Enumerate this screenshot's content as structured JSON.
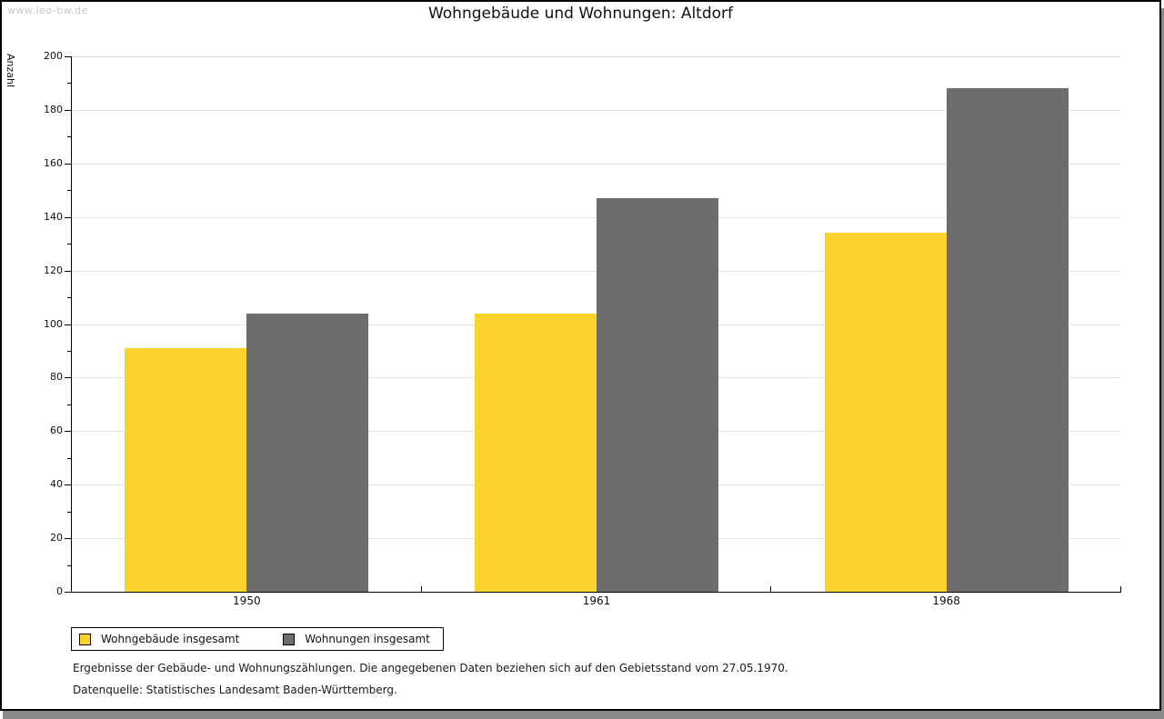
{
  "page": {
    "watermark": "www.leo-bw.de",
    "title": "Wohngebäude und Wohnungen: Altdorf"
  },
  "chart_data": {
    "type": "bar",
    "title": "Wohngebäude und Wohnungen: Altdorf",
    "xlabel": "",
    "ylabel": "Anzahl",
    "categories": [
      "1950",
      "1961",
      "1968"
    ],
    "series": [
      {
        "name": "Wohngebäude insgesamt",
        "color": "#FBD32C",
        "values": [
          91,
          104,
          134
        ]
      },
      {
        "name": "Wohnungen insgesamt",
        "color": "#6D6D6D",
        "values": [
          104,
          147,
          188
        ]
      }
    ],
    "ylim": [
      0,
      200
    ],
    "ytick_step": 20,
    "y_minor_step": 10,
    "grid": true,
    "legend_position": "bottom-left"
  },
  "legend": {
    "items": [
      {
        "label": "Wohngebäude insgesamt",
        "color": "#FBD32C"
      },
      {
        "label": "Wohnungen insgesamt",
        "color": "#6D6D6D"
      }
    ]
  },
  "footnotes": [
    "Ergebnisse der Gebäude- und Wohnungszählungen. Die angegebenen Daten beziehen sich auf den Gebietsstand vom 27.05.1970.",
    "Datenquelle: Statistisches Landesamt Baden-Württemberg."
  ],
  "colors": {
    "grid": "#E3E3E3",
    "axis": "#000000",
    "watermark": "#C9C9C9",
    "shadow": "#8A8A8A",
    "text": "#111111"
  }
}
